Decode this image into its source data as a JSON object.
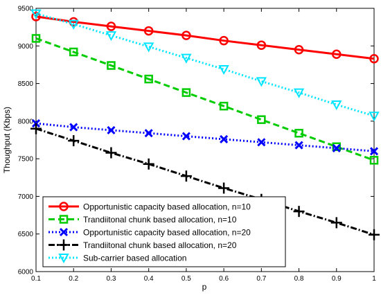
{
  "chart_data": {
    "type": "line",
    "title": "",
    "xlabel": "p",
    "ylabel": "Thoughput (Kbps)",
    "x": [
      0.1,
      0.2,
      0.3,
      0.4,
      0.5,
      0.6,
      0.7,
      0.8,
      0.9,
      1
    ],
    "xlim": [
      0.1,
      1
    ],
    "ylim": [
      6000,
      9500
    ],
    "xticks": [
      "0.1",
      "0.2",
      "0.3",
      "0.4",
      "0.5",
      "0.6",
      "0.7",
      "0.8",
      "0.9",
      "1"
    ],
    "yticks": [
      "6000",
      "6500",
      "7000",
      "7500",
      "8000",
      "8500",
      "9000",
      "9500"
    ],
    "grid": false,
    "legend_position": "bottom-left",
    "series": [
      {
        "name": "Opportunistic capacity based allocation, n=10",
        "color": "#ff0000",
        "line_style": "solid",
        "marker": "circle",
        "values": [
          9390,
          9320,
          9260,
          9200,
          9140,
          9070,
          9010,
          8950,
          8890,
          8830
        ]
      },
      {
        "name": "Trandiitonal chunk based allocation, n=10",
        "color": "#00cc00",
        "line_style": "dashed",
        "marker": "square",
        "values": [
          9100,
          8920,
          8740,
          8560,
          8380,
          8200,
          8020,
          7840,
          7660,
          7480
        ]
      },
      {
        "name": "Opportunistic capacity based allocation, n=20",
        "color": "#0000ff",
        "line_style": "dotted",
        "marker": "x",
        "values": [
          7970,
          7920,
          7880,
          7840,
          7800,
          7760,
          7720,
          7680,
          7640,
          7600
        ]
      },
      {
        "name": "Trandiitonal chunk based allocation, n=20",
        "color": "#000000",
        "line_style": "dashdot",
        "marker": "plus",
        "values": [
          7900,
          7740,
          7580,
          7430,
          7270,
          7110,
          6960,
          6800,
          6650,
          6490
        ]
      },
      {
        "name": "Sub-carrier based allocation",
        "color": "#00e5ff",
        "line_style": "dotted",
        "marker": "triangle-down",
        "values": [
          9430,
          9290,
          9140,
          8990,
          8840,
          8690,
          8530,
          8380,
          8220,
          8070
        ]
      }
    ]
  }
}
